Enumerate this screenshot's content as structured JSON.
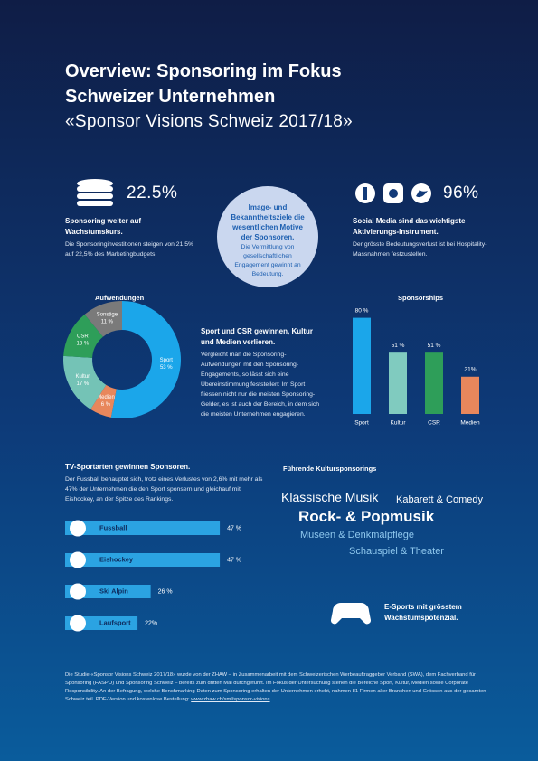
{
  "header": {
    "title": [
      "Overview: Sponsoring im Fokus",
      "Schweizer Unternehmen"
    ],
    "subtitle": "«Sponsor Visions Schweiz 2017/18»"
  },
  "stats": [
    {
      "value": "22.5%",
      "heading": "Sponsoring weiter auf Wachstumskurs.",
      "text": "Die Sponsoringinvestitionen steigen von 21,5% auf 22,5% des Marketingbudgets."
    },
    {
      "value": "96%",
      "heading": "Social Media sind das wichtigste Aktivierungs-Instrument.",
      "text": "Der grösste Bedeutungsverlust ist bei Hospitality-Massnahmen festzustellen."
    }
  ],
  "circle": {
    "heading": "Image- und Bekanntheitsziele die wesentlichen Motive der Sponsoren.",
    "text": "Die Vermittlung von gesellschaftlichen Engagement gewinnt an Bedeutung."
  },
  "sport_csr": {
    "heading": "Sport und CSR gewinnen, Kultur und Medien verlieren.",
    "text": "Vergleicht man die Sponsoring-Aufwendungen mit den Sponsoring-Engagements, so lässt sich eine Übereinstimmung feststellen: Im Sport fliessen nicht nur die meisten Sponsoring-Gelder, es ist auch der Bereich, in dem sich die meisten Unternehmen engagieren."
  },
  "tv": {
    "heading": "TV-Sportarten gewinnen Sponsoren.",
    "text": "Der Fussball behauptet sich, trotz eines Verlustes von 2,6% mit mehr als 47% der Unternehmen die den Sport sponsern und gleichauf mit Eishockey, an der Spitze des Rankings."
  },
  "chart_data": [
    {
      "type": "donut",
      "title": "Aufwendungen",
      "categories": [
        "Sport",
        "Medien",
        "Kultur",
        "CSR",
        "Sonstige"
      ],
      "values": [
        53,
        6,
        17,
        13,
        11
      ],
      "value_labels": [
        "53 %",
        "6 %",
        "17 %",
        "13 %",
        "11 %"
      ],
      "colors": [
        "#1ba6ea",
        "#e8875c",
        "#74c3b6",
        "#2e9e59",
        "#7a7a7a"
      ]
    },
    {
      "type": "bar",
      "title": "Sponsorships",
      "categories": [
        "Sport",
        "Kultur",
        "CSR",
        "Medien"
      ],
      "values": [
        80,
        51,
        51,
        31
      ],
      "value_labels": [
        "80 %",
        "51 %",
        "51 %",
        "31%"
      ],
      "colors": [
        "#1ba6ea",
        "#80cbbf",
        "#2e9e59",
        "#e8875c"
      ]
    },
    {
      "type": "barh",
      "categories": [
        "Fussball",
        "Eishockey",
        "Ski Alpin",
        "Laufsport"
      ],
      "values": [
        47,
        47,
        26,
        22
      ],
      "value_labels": [
        "47 %",
        "47 %",
        "26 %",
        "22%"
      ],
      "color": "#2ba3e2"
    }
  ],
  "kultur": {
    "title": "Führende Kultursponsorings",
    "items": [
      "Klassische Musik",
      "Kabarett & Comedy",
      "Rock- & Popmusik",
      "Museen & Denkmalpflege",
      "Schauspiel & Theater"
    ]
  },
  "esports": "E-Sports mit grösstem Wachstumspotenzial.",
  "footer": {
    "text": "Die Studie «Sponsor Visions Schweiz 2017/18» wurde von der ZHAW – in Zusammenarbeit mit dem Schweizerischen Werbeauftraggeber Verband (SWA), dem Fachverband für Sponsoring (FASPO) und Sponsoring Schweiz – bereits zum dritten Mal durchgeführt. Im Fokus der Untersuchung stehen die Bereiche Sport, Kultur, Medien sowie Corporate Responsibility. An der Befragung, welche Benchmarking-Daten zum Sponsoring erhalten der Unternehmen erhebt, nahmen 81 Firmen aller Branchen und Grössen aus der gesamten Schweiz teil. PDF-Version und kostenlose Bestellung:",
    "link": "www.zhaw.ch/sml/sponsor-visions"
  }
}
